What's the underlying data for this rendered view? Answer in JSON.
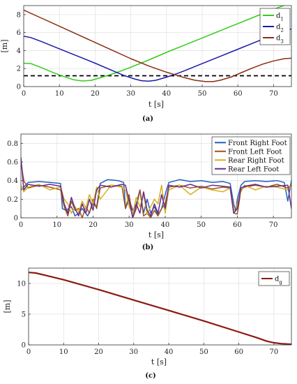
{
  "chart_data": [
    {
      "type": "line",
      "caption": "(a)",
      "xlabel": "t [s]",
      "ylabel": "[m]",
      "xlim": [
        0,
        75
      ],
      "ylim": [
        0,
        9
      ],
      "xticks": [
        0,
        10,
        20,
        30,
        40,
        50,
        60,
        70
      ],
      "yticks": [
        0,
        2,
        4,
        6,
        8
      ],
      "grid": true,
      "legend": "top-right",
      "series": [
        {
          "name": "d",
          "sub": "1",
          "color": "#33cc1a",
          "x": [
            0,
            2,
            5,
            8,
            11,
            14,
            16.5,
            19,
            22,
            26,
            30,
            35,
            40,
            45,
            50,
            55,
            60,
            65,
            70,
            75
          ],
          "y": [
            2.6,
            2.55,
            2.1,
            1.6,
            1.15,
            0.75,
            0.62,
            0.7,
            1.05,
            1.55,
            2.15,
            2.95,
            3.8,
            4.6,
            5.4,
            6.2,
            7.0,
            7.8,
            8.6,
            9.3
          ]
        },
        {
          "name": "d",
          "sub": "2",
          "color": "#1a1aa8",
          "x": [
            0,
            2,
            5,
            10,
            15,
            20,
            25,
            28,
            31,
            33,
            35,
            37,
            40,
            43,
            45,
            50,
            55,
            60,
            65,
            70,
            75
          ],
          "y": [
            5.6,
            5.45,
            5.0,
            4.2,
            3.4,
            2.6,
            1.75,
            1.25,
            0.85,
            0.65,
            0.6,
            0.7,
            1.05,
            1.45,
            1.75,
            2.55,
            3.35,
            4.15,
            4.95,
            5.75,
            6.4
          ]
        },
        {
          "name": "d",
          "sub": "3",
          "color": "#8b2d12",
          "x": [
            0,
            5,
            10,
            15,
            20,
            25,
            30,
            35,
            40,
            45,
            48,
            51,
            53,
            55,
            58,
            61,
            64,
            67,
            70,
            73,
            75
          ],
          "y": [
            8.5,
            7.6,
            6.7,
            5.8,
            4.9,
            4.0,
            3.1,
            2.3,
            1.6,
            1.0,
            0.7,
            0.55,
            0.55,
            0.7,
            1.05,
            1.55,
            2.05,
            2.5,
            2.85,
            3.1,
            3.15
          ]
        }
      ],
      "reference_line": {
        "y": 1.2,
        "style": "dashed",
        "color": "#000000"
      }
    },
    {
      "type": "line",
      "caption": "(b)",
      "xlabel": "t [s]",
      "ylabel": "",
      "xlim": [
        0,
        75
      ],
      "ylim": [
        0,
        0.9
      ],
      "xticks": [
        0,
        10,
        20,
        30,
        40,
        50,
        60,
        70
      ],
      "yticks": [
        0,
        0.2,
        0.4,
        0.6,
        0.8
      ],
      "ytick_labels": [
        "0",
        "0.2",
        "0.4",
        "0.6",
        "0.8"
      ],
      "grid": true,
      "legend": "top-right",
      "series": [
        {
          "name": "Front Right Foot",
          "color": "#1f5fbf",
          "x": [
            0,
            0.8,
            2,
            5,
            8,
            11,
            11.5,
            12.5,
            14,
            15,
            16,
            17,
            18.5,
            20,
            21,
            22,
            24,
            27,
            28.5,
            29,
            30,
            31,
            32,
            33,
            34,
            35,
            36,
            37,
            38,
            39,
            40,
            41,
            44,
            47,
            50,
            53,
            56,
            58,
            59,
            59.5,
            60,
            61,
            61.5,
            62,
            65,
            68,
            71,
            73,
            74,
            75
          ],
          "y": [
            0.3,
            0.33,
            0.38,
            0.39,
            0.38,
            0.37,
            0.1,
            0.08,
            0.12,
            0.02,
            0.05,
            0.1,
            0.02,
            0.15,
            0.12,
            0.37,
            0.41,
            0.4,
            0.38,
            0.1,
            0.2,
            0.08,
            0.15,
            0.3,
            0.05,
            0.2,
            0.05,
            0.12,
            0.03,
            0.1,
            0.25,
            0.38,
            0.41,
            0.39,
            0.4,
            0.38,
            0.39,
            0.37,
            0.15,
            0.07,
            0.2,
            0.35,
            0.37,
            0.39,
            0.4,
            0.39,
            0.4,
            0.38,
            0.18,
            0.4
          ]
        },
        {
          "name": "Front Left Foot",
          "color": "#a0521a",
          "x": [
            0,
            0.8,
            2,
            5,
            8,
            11,
            12,
            13,
            14,
            15,
            16,
            17,
            18,
            19,
            20,
            21,
            22,
            25,
            28,
            29,
            30,
            31,
            32,
            33,
            34,
            35,
            36,
            37,
            38,
            39,
            40,
            41,
            44,
            47,
            50,
            53,
            56,
            58,
            59,
            60,
            61,
            62,
            65,
            68,
            71,
            74,
            75
          ],
          "y": [
            0.6,
            0.4,
            0.32,
            0.35,
            0.33,
            0.3,
            0.12,
            0.02,
            0.18,
            0.08,
            0.1,
            0.0,
            0.12,
            0.05,
            0.2,
            0.1,
            0.32,
            0.35,
            0.34,
            0.1,
            0.25,
            0.0,
            0.1,
            0.3,
            0.02,
            0.05,
            0.0,
            0.08,
            0.02,
            0.1,
            0.15,
            0.33,
            0.35,
            0.32,
            0.34,
            0.31,
            0.33,
            0.32,
            0.05,
            0.04,
            0.3,
            0.33,
            0.35,
            0.33,
            0.36,
            0.32,
            0.35
          ]
        },
        {
          "name": "Rear Right Foot",
          "color": "#d8b01a",
          "x": [
            0,
            0.8,
            2,
            5,
            8,
            11,
            12,
            13,
            14,
            15,
            16,
            17,
            18,
            19,
            20,
            21,
            22,
            25,
            28,
            29,
            30,
            31,
            32,
            33,
            34,
            35,
            36,
            37,
            38,
            39,
            40,
            41,
            44,
            47,
            50,
            53,
            56,
            58,
            59,
            60,
            61,
            62,
            65,
            68,
            71,
            74,
            75
          ],
          "y": [
            0.35,
            0.28,
            0.33,
            0.36,
            0.3,
            0.33,
            0.2,
            0.15,
            0.05,
            0.12,
            0.06,
            0.18,
            0.1,
            0.25,
            0.15,
            0.33,
            0.2,
            0.35,
            0.33,
            0.3,
            0.12,
            0.05,
            0.22,
            0.12,
            0.25,
            0.04,
            0.12,
            0.2,
            0.15,
            0.35,
            0.05,
            0.3,
            0.35,
            0.25,
            0.33,
            0.3,
            0.28,
            0.32,
            0.08,
            0.15,
            0.28,
            0.35,
            0.3,
            0.34,
            0.33,
            0.3,
            0.34
          ]
        },
        {
          "name": "Rear Left Foot",
          "color": "#6a2a8a",
          "x": [
            0,
            0.8,
            2,
            5,
            8,
            11,
            12,
            13,
            14,
            15,
            16,
            17,
            18,
            19,
            20,
            21,
            22,
            25,
            28,
            29,
            30,
            31,
            32,
            33,
            34,
            35,
            36,
            37,
            38,
            39,
            40,
            41,
            44,
            47,
            50,
            53,
            56,
            58,
            59,
            60,
            61,
            62,
            65,
            68,
            71,
            74,
            75
          ],
          "y": [
            0.65,
            0.3,
            0.36,
            0.34,
            0.36,
            0.34,
            0.15,
            0.05,
            0.22,
            0.1,
            0.02,
            0.15,
            0.05,
            0.2,
            0.08,
            0.3,
            0.35,
            0.33,
            0.36,
            0.35,
            0.18,
            0.0,
            0.15,
            0.05,
            0.28,
            0.08,
            0.02,
            0.15,
            0.05,
            0.25,
            0.1,
            0.35,
            0.33,
            0.36,
            0.32,
            0.35,
            0.34,
            0.33,
            0.05,
            0.1,
            0.32,
            0.34,
            0.36,
            0.33,
            0.34,
            0.35,
            0.1
          ]
        }
      ]
    },
    {
      "type": "line",
      "caption": "(c)",
      "xlabel": "t [s]",
      "ylabel": "[m]",
      "xlim": [
        0,
        75
      ],
      "ylim": [
        0,
        12.5
      ],
      "xticks": [
        0,
        10,
        20,
        30,
        40,
        50,
        60,
        70
      ],
      "yticks": [
        0,
        5,
        10
      ],
      "grid": true,
      "legend": "top-right",
      "series": [
        {
          "name": "d",
          "sub": "g",
          "color": "#8b1a12",
          "x": [
            0,
            2,
            5,
            10,
            20,
            30,
            40,
            50,
            60,
            65,
            68,
            70,
            72,
            75
          ],
          "y": [
            11.8,
            11.7,
            11.3,
            10.6,
            9.0,
            7.3,
            5.6,
            3.9,
            2.1,
            1.2,
            0.6,
            0.35,
            0.2,
            0.1
          ]
        }
      ]
    }
  ]
}
